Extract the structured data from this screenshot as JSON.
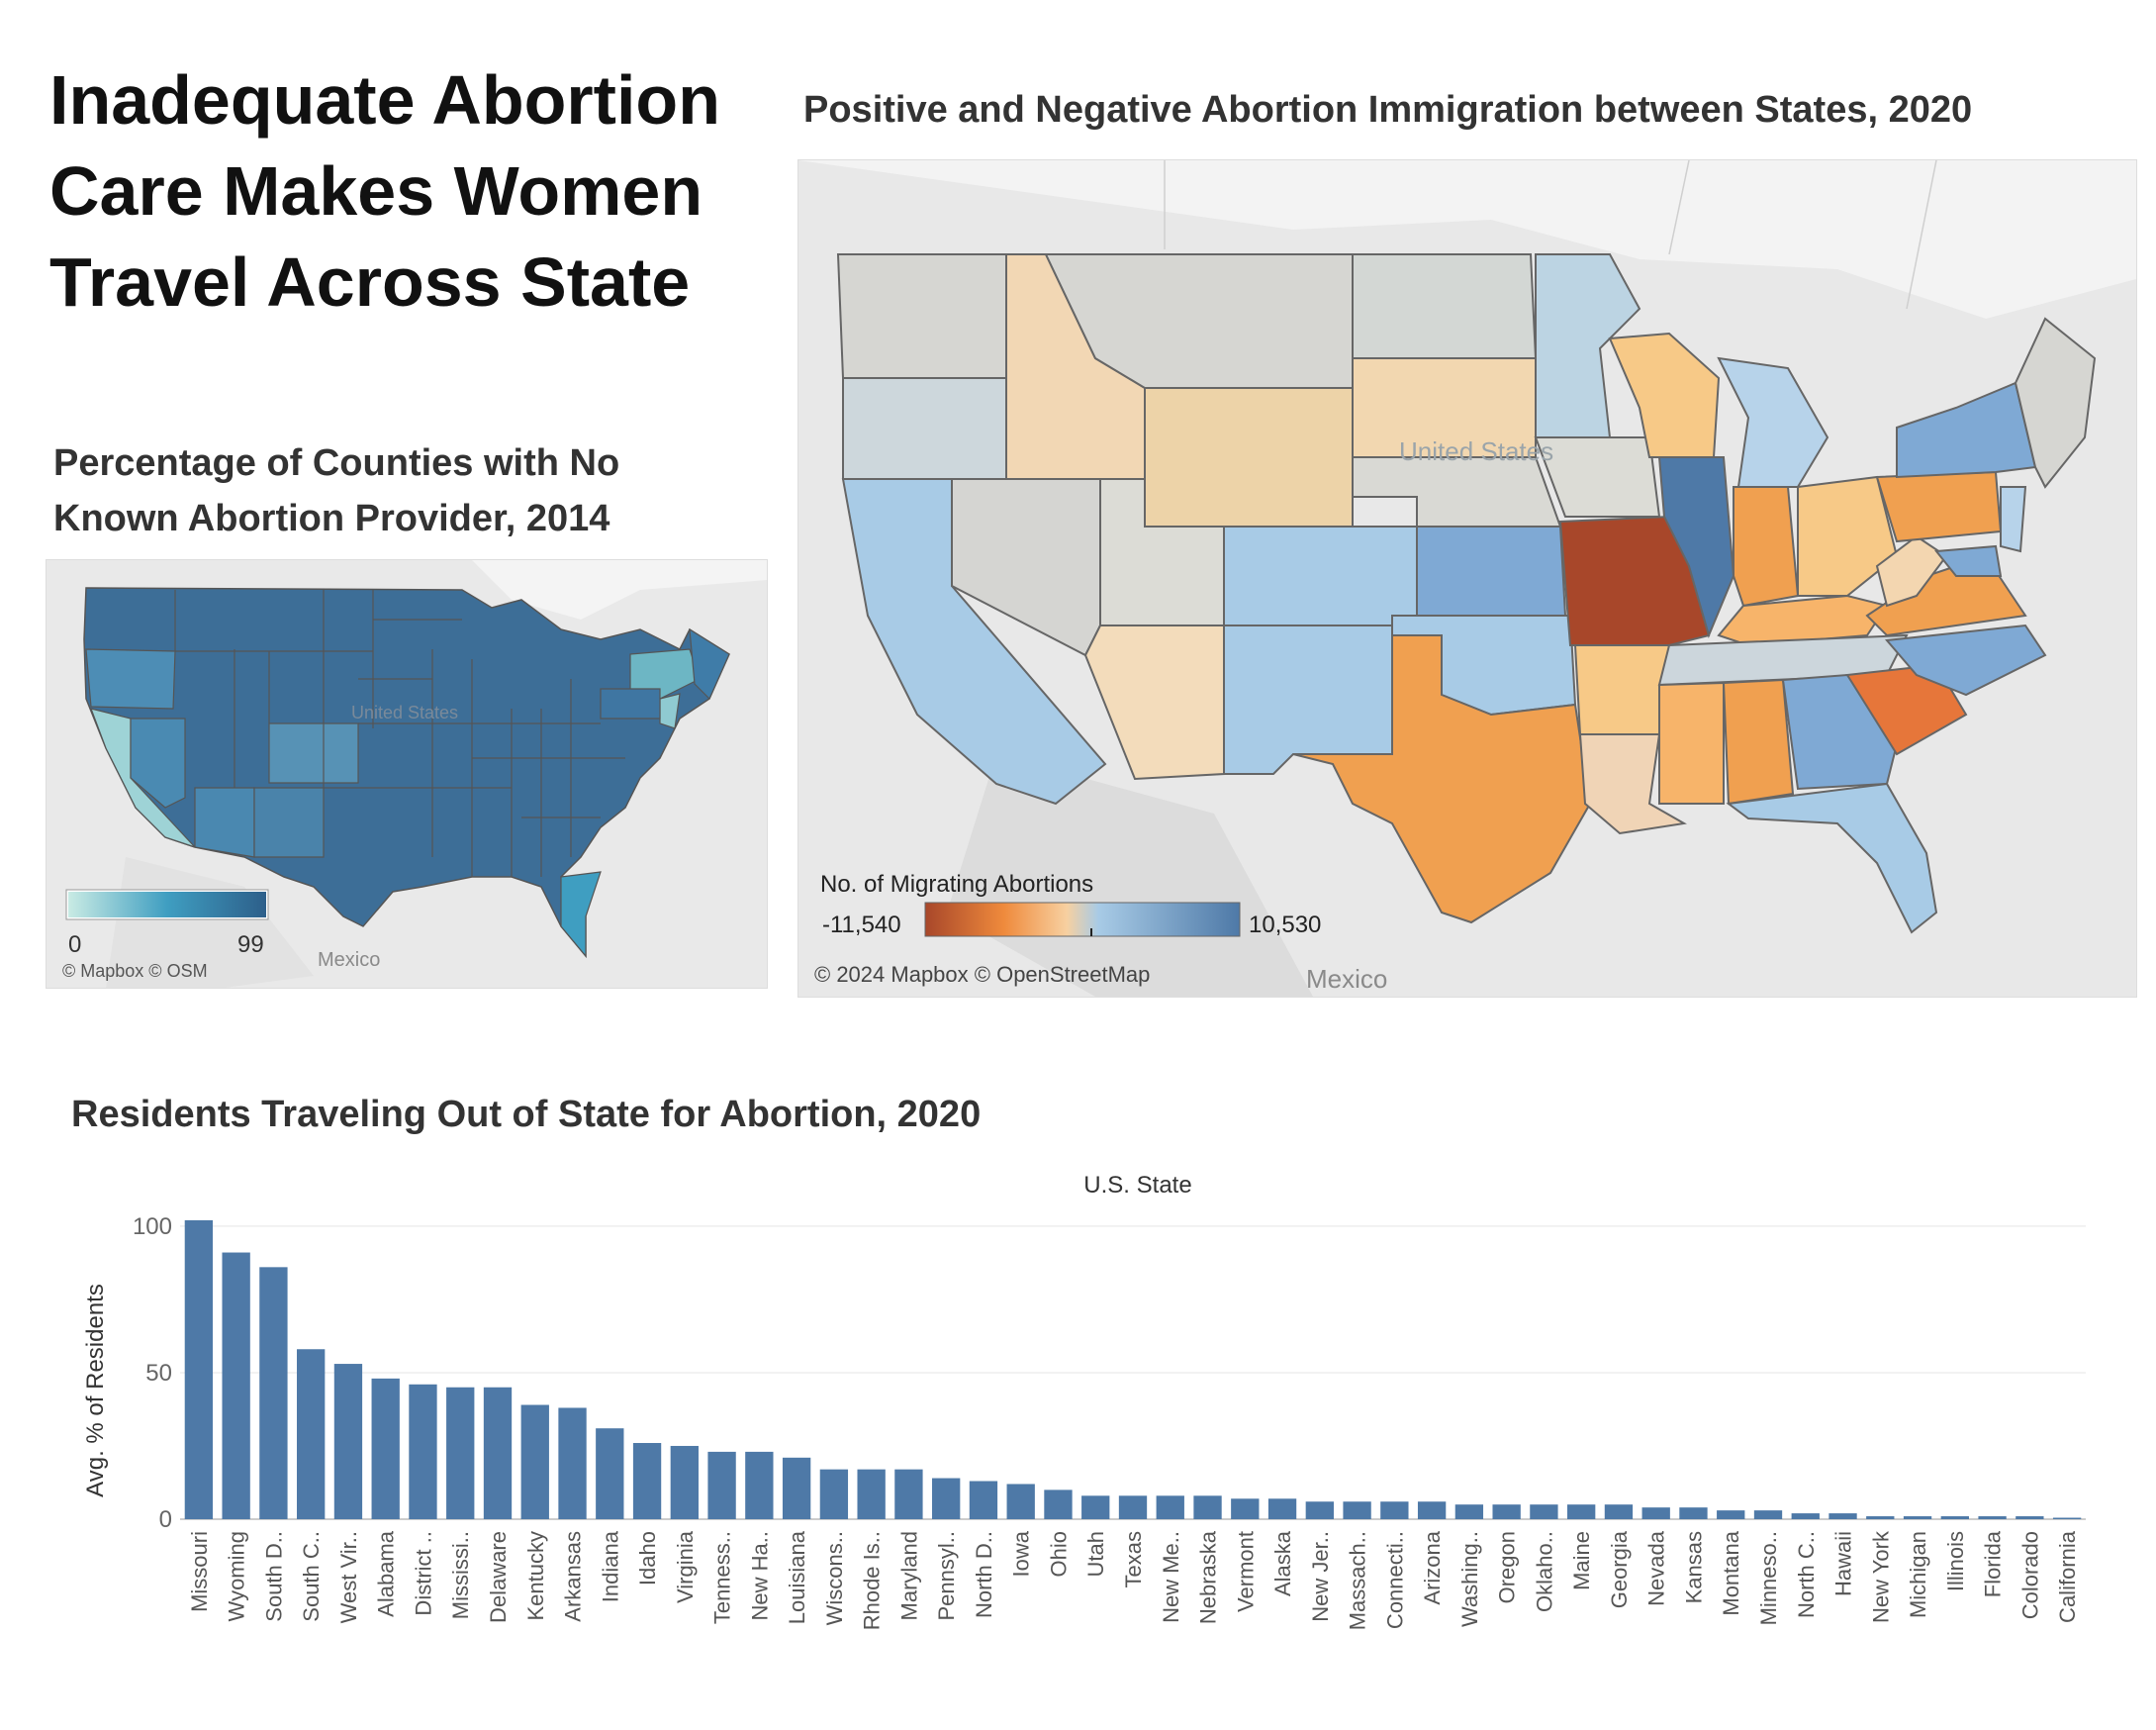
{
  "main_title": "Inadequate Abortion Care Makes Women Travel Across State",
  "map1": {
    "title": "Percentage of Counties with No Known Abortion Provider, 2014",
    "country_label": "United States",
    "neighbor_label": "Mexico",
    "attribution": "© Mapbox © OSM",
    "legend_min": "0",
    "legend_max": "99",
    "colors": {
      "low": "#c9ebe4",
      "mid": "#3f9ec1",
      "high": "#2d5f8a"
    }
  },
  "map2": {
    "title": "Positive and Negative Abortion Immigration between States, 2020",
    "country_label": "United States",
    "neighbor_label": "Mexico",
    "attribution": "© 2024 Mapbox © OpenStreetMap",
    "legend_title": "No. of Migrating Abortions",
    "legend_min": "-11,540",
    "legend_max": "10,530",
    "colors": {
      "neg_strong": "#a8472a",
      "neg": "#f0a050",
      "neg_light": "#f3d6b0",
      "neutral": "#d5d5d2",
      "pos_light": "#a8cbe6",
      "pos": "#7fa9d4",
      "pos_strong": "#4e79a7"
    }
  },
  "chart_data": {
    "type": "bar",
    "title": "Residents Traveling Out of State for Abortion, 2020",
    "header": "U.S. State",
    "ylabel": "Avg. % of Residents",
    "ylim": [
      0,
      103
    ],
    "yticks": [
      0,
      50,
      100
    ],
    "bar_color": "#4e79a7",
    "categories": [
      "Missouri",
      "Wyoming",
      "South D..",
      "South C..",
      "West Vir..",
      "Alabama",
      "District ..",
      "Mississi..",
      "Delaware",
      "Kentucky",
      "Arkansas",
      "Indiana",
      "Idaho",
      "Virginia",
      "Tenness..",
      "New Ha..",
      "Louisiana",
      "Wiscons..",
      "Rhode Is..",
      "Maryland",
      "Pennsyl..",
      "North D..",
      "Iowa",
      "Ohio",
      "Utah",
      "Texas",
      "New Me..",
      "Nebraska",
      "Vermont",
      "Alaska",
      "New Jer..",
      "Massach..",
      "Connecti..",
      "Arizona",
      "Washing..",
      "Oregon",
      "Oklaho..",
      "Maine",
      "Georgia",
      "Nevada",
      "Kansas",
      "Montana",
      "Minneso..",
      "North C..",
      "Hawaii",
      "New York",
      "Michigan",
      "Illinois",
      "Florida",
      "Colorado",
      "California"
    ],
    "values": [
      102,
      91,
      86,
      58,
      53,
      48,
      46,
      45,
      45,
      39,
      38,
      31,
      26,
      25,
      23,
      23,
      21,
      17,
      17,
      17,
      14,
      13,
      12,
      10,
      8,
      8,
      8,
      8,
      7,
      7,
      6,
      6,
      6,
      6,
      5,
      5,
      5,
      5,
      5,
      4,
      4,
      3,
      3,
      2,
      2,
      1,
      1,
      1,
      1,
      1,
      0.5
    ]
  }
}
